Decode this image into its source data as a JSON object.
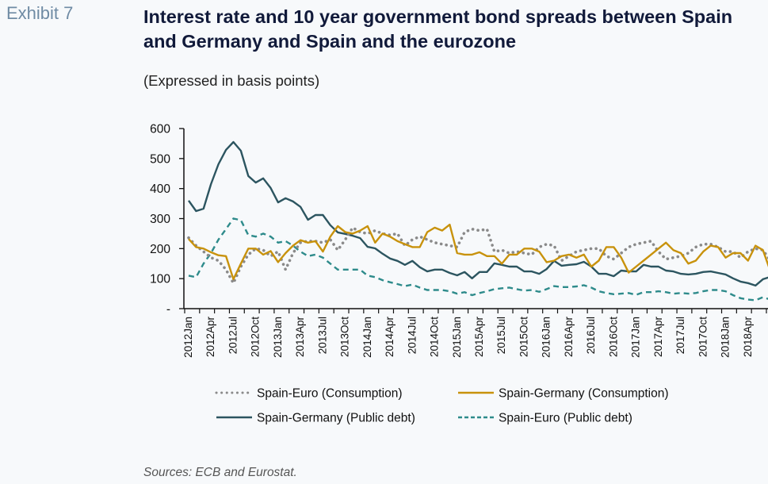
{
  "exhibit_label": "Exhibit 7",
  "title": "Interest rate and 10 year government bond spreads between Spain and Germany and Spain and the eurozone",
  "subtitle": "(Expressed in basis points)",
  "sources": "Sources: ECB and Eurostat.",
  "chart_data": {
    "type": "line",
    "title": "Interest rate and 10 year government bond spreads between Spain and Germany and Spain and the eurozone",
    "subtitle": "(Expressed in basis points)",
    "xlabel": "",
    "ylabel": "",
    "ylim": [
      0,
      600
    ],
    "yticks": [
      0,
      100,
      200,
      300,
      400,
      500,
      600
    ],
    "ytick_labels": [
      "-",
      "100",
      "200",
      "300",
      "400",
      "500",
      "600"
    ],
    "x_start": "2012Jan",
    "x_frequency": "monthly",
    "xtick_labels": [
      "2012Jan",
      "2012Apr",
      "2012Jul",
      "2012Oct",
      "2013Jan",
      "2013Apr",
      "2013Jul",
      "2013Oct",
      "2014Jan",
      "2014Apr",
      "2014Jul",
      "2014Oct",
      "2015Jan",
      "2015Apr",
      "2015Jul",
      "2015Oct",
      "2016Jan",
      "2016Apr",
      "2016Jul",
      "2016Oct",
      "2017Jan",
      "2017Apr",
      "2017Jul",
      "2017Oct",
      "2018Jan",
      "2018Apr"
    ],
    "grid": false,
    "legend_position": "bottom",
    "colors": {
      "spain_euro_consumption": "#8a8a8a",
      "spain_germany_consumption": "#c8920c",
      "spain_germany_public_debt": "#2c5560",
      "spain_euro_public_debt": "#2e8b8b"
    },
    "series": [
      {
        "name": "Spain-Euro (Consumption)",
        "key": "spain_euro_consumption",
        "style": "dotted",
        "values": [
          236,
          210,
          190,
          170,
          160,
          130,
          85,
          140,
          180,
          200,
          195,
          175,
          190,
          130,
          185,
          220,
          225,
          225,
          220,
          230,
          195,
          230,
          270,
          255,
          250,
          260,
          250,
          245,
          250,
          210,
          230,
          240,
          230,
          220,
          215,
          210,
          205,
          255,
          265,
          260,
          265,
          190,
          195,
          185,
          190,
          185,
          180,
          205,
          215,
          210,
          160,
          175,
          190,
          195,
          200,
          200,
          175,
          165,
          185,
          205,
          215,
          220,
          225,
          190,
          165,
          170,
          175,
          185,
          205,
          215,
          215,
          205,
          190,
          190,
          170,
          190,
          200,
          195,
          160
        ]
      },
      {
        "name": "Spain-Germany (Consumption)",
        "key": "spain_germany_consumption",
        "style": "solid",
        "values": [
          232,
          205,
          200,
          188,
          178,
          175,
          98,
          150,
          200,
          200,
          180,
          192,
          155,
          185,
          210,
          228,
          220,
          225,
          190,
          240,
          275,
          255,
          250,
          260,
          275,
          220,
          250,
          240,
          225,
          215,
          205,
          205,
          255,
          270,
          260,
          280,
          185,
          180,
          180,
          188,
          175,
          175,
          150,
          180,
          180,
          200,
          200,
          190,
          155,
          160,
          175,
          180,
          170,
          180,
          140,
          160,
          205,
          205,
          170,
          120,
          140,
          160,
          180,
          200,
          220,
          195,
          185,
          150,
          160,
          190,
          210,
          205,
          170,
          185,
          185,
          160,
          210,
          195,
          125
        ]
      },
      {
        "name": "Spain-Germany (Public debt)",
        "key": "spain_germany_public_debt",
        "style": "solid",
        "values": [
          360,
          325,
          333,
          415,
          481,
          529,
          555,
          526,
          442,
          420,
          434,
          402,
          354,
          368,
          357,
          339,
          296,
          312,
          312,
          278,
          254,
          249,
          243,
          235,
          206,
          201,
          183,
          167,
          159,
          146,
          159,
          138,
          124,
          130,
          130,
          119,
          111,
          122,
          101,
          122,
          122,
          151,
          146,
          140,
          140,
          124,
          124,
          116,
          132,
          159,
          143,
          146,
          148,
          156,
          140,
          116,
          116,
          108,
          127,
          124,
          124,
          146,
          140,
          140,
          127,
          124,
          116,
          114,
          116,
          122,
          124,
          119,
          114,
          101,
          90,
          85,
          77,
          98,
          106
        ]
      },
      {
        "name": "Spain-Euro (Public debt)",
        "key": "spain_euro_public_debt",
        "style": "dashed",
        "values": [
          110,
          105,
          150,
          185,
          230,
          265,
          300,
          295,
          245,
          240,
          250,
          240,
          220,
          225,
          210,
          190,
          175,
          180,
          170,
          150,
          130,
          130,
          130,
          130,
          110,
          105,
          95,
          88,
          82,
          75,
          80,
          70,
          62,
          62,
          62,
          58,
          50,
          55,
          45,
          52,
          58,
          65,
          68,
          70,
          65,
          60,
          62,
          56,
          65,
          75,
          72,
          72,
          74,
          78,
          70,
          58,
          52,
          48,
          50,
          52,
          46,
          55,
          55,
          58,
          55,
          50,
          52,
          50,
          52,
          58,
          62,
          62,
          58,
          45,
          35,
          30,
          28,
          38,
          30
        ]
      }
    ]
  }
}
